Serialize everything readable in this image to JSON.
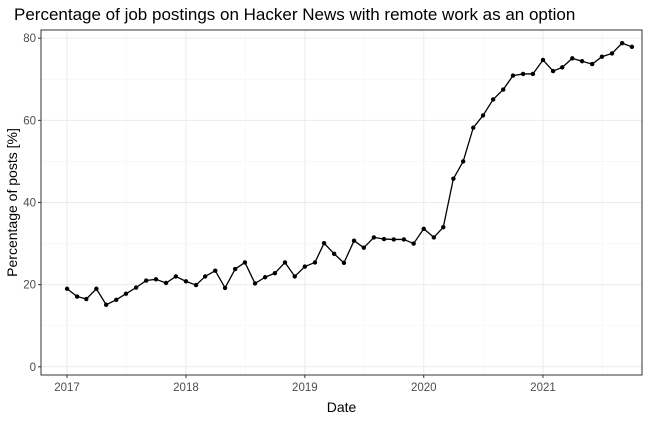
{
  "chart_data": {
    "type": "line",
    "title": "Percentage of job postings on Hacker News with remote work as an option",
    "xlabel": "Date",
    "ylabel": "Percentage of posts [%]",
    "x_type": "date",
    "xlim": [
      "2016-10-13",
      "2021-11-01"
    ],
    "ylim": [
      -2,
      82
    ],
    "x_ticks": [
      {
        "value": "2017-01-01",
        "label": "2017"
      },
      {
        "value": "2018-01-01",
        "label": "2018"
      },
      {
        "value": "2019-01-01",
        "label": "2019"
      },
      {
        "value": "2020-01-01",
        "label": "2020"
      },
      {
        "value": "2021-01-01",
        "label": "2021"
      }
    ],
    "y_ticks": [
      {
        "value": 0,
        "label": "0"
      },
      {
        "value": 20,
        "label": "20"
      },
      {
        "value": 40,
        "label": "40"
      },
      {
        "value": 60,
        "label": "60"
      },
      {
        "value": 80,
        "label": "80"
      }
    ],
    "grid": true,
    "legend": "none",
    "colors": {
      "line": "#000000",
      "panel_border": "#333333",
      "grid_major": "#ebebeb",
      "grid_minor": "#f5f5f5",
      "background": "#ffffff"
    },
    "series": [
      {
        "x": [
          "2017-01-01",
          "2017-02-01",
          "2017-03-01",
          "2017-04-01",
          "2017-05-01",
          "2017-06-01",
          "2017-07-01",
          "2017-08-01",
          "2017-09-01",
          "2017-10-01",
          "2017-11-01",
          "2017-12-01",
          "2018-01-01",
          "2018-02-01",
          "2018-03-01",
          "2018-04-01",
          "2018-05-01",
          "2018-06-01",
          "2018-07-01",
          "2018-08-01",
          "2018-09-01",
          "2018-10-01",
          "2018-11-01",
          "2018-12-01",
          "2019-01-01",
          "2019-02-01",
          "2019-03-01",
          "2019-04-01",
          "2019-05-01",
          "2019-06-01",
          "2019-07-01",
          "2019-08-01",
          "2019-09-01",
          "2019-10-01",
          "2019-11-01",
          "2019-12-01",
          "2020-01-01",
          "2020-02-01",
          "2020-03-01",
          "2020-04-01",
          "2020-05-01",
          "2020-06-01",
          "2020-07-01",
          "2020-08-01",
          "2020-09-01",
          "2020-10-01",
          "2020-11-01",
          "2020-12-01",
          "2021-01-01",
          "2021-02-01",
          "2021-03-01",
          "2021-04-01",
          "2021-05-01",
          "2021-06-01",
          "2021-07-01",
          "2021-08-01",
          "2021-09-01",
          "2021-10-01"
        ],
        "values": [
          19.0,
          17.1,
          16.5,
          19.0,
          15.1,
          16.3,
          17.8,
          19.3,
          21.0,
          21.3,
          20.4,
          22.0,
          20.8,
          19.9,
          22.0,
          23.4,
          19.2,
          23.8,
          25.4,
          20.3,
          21.8,
          22.8,
          25.4,
          22.0,
          24.4,
          25.4,
          30.1,
          27.5,
          25.3,
          30.7,
          29.0,
          31.5,
          31.1,
          31.0,
          31.0,
          30.0,
          33.6,
          31.5,
          34.0,
          45.8,
          50.0,
          58.2,
          61.2,
          65.1,
          67.5,
          70.9,
          71.3,
          71.3,
          74.7,
          72.0,
          72.9,
          75.1,
          74.4,
          73.7,
          75.5,
          76.3,
          78.8,
          77.9
        ]
      }
    ]
  }
}
